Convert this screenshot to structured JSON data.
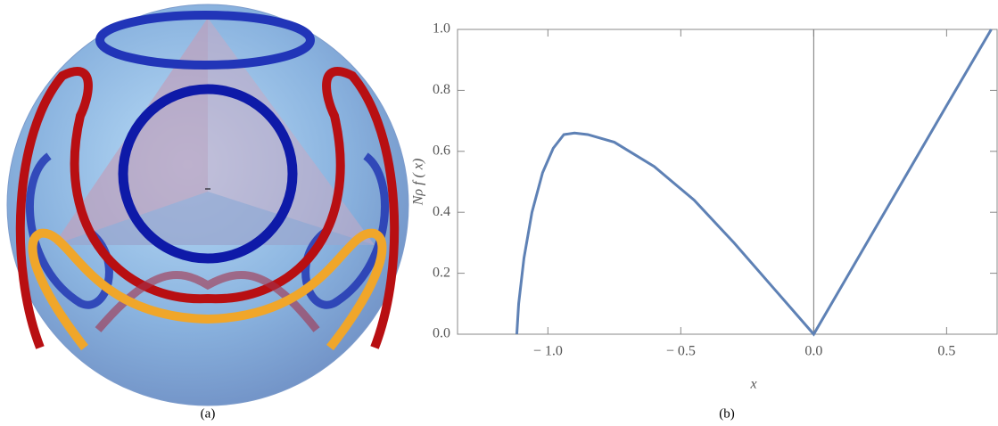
{
  "captions": {
    "a": "(a)",
    "b": "(b)"
  },
  "chart_data": {
    "type": "line",
    "xlabel": "x",
    "ylabel": "Nρ f ( x)",
    "series": [
      {
        "color": "#5e81b5",
        "x": [
          -1.117,
          -1.11,
          -1.09,
          -1.06,
          -1.02,
          -0.98,
          -0.94,
          -0.9,
          -0.85,
          -0.75,
          -0.6,
          -0.45,
          -0.3,
          -0.15,
          0,
          0.1,
          0.3,
          0.5,
          0.668
        ],
        "values": [
          0,
          0.1,
          0.25,
          0.4,
          0.53,
          0.61,
          0.655,
          0.66,
          0.655,
          0.63,
          0.55,
          0.44,
          0.3,
          0.15,
          0,
          0.15,
          0.45,
          0.75,
          1.0
        ]
      }
    ],
    "xlim": [
      -1.34,
      0.69
    ],
    "ylim": [
      0,
      1
    ],
    "xticks": [
      {
        "value": -1,
        "label": "− 1.0"
      },
      {
        "value": -0.5,
        "label": "− 0.5"
      },
      {
        "value": 0,
        "label": "0.0"
      },
      0.5
    ],
    "yticks": [
      {
        "value": 0,
        "label": "0.0"
      },
      0.2,
      0.4,
      0.6,
      0.8,
      {
        "value": 1,
        "label": "1.0"
      }
    ]
  }
}
